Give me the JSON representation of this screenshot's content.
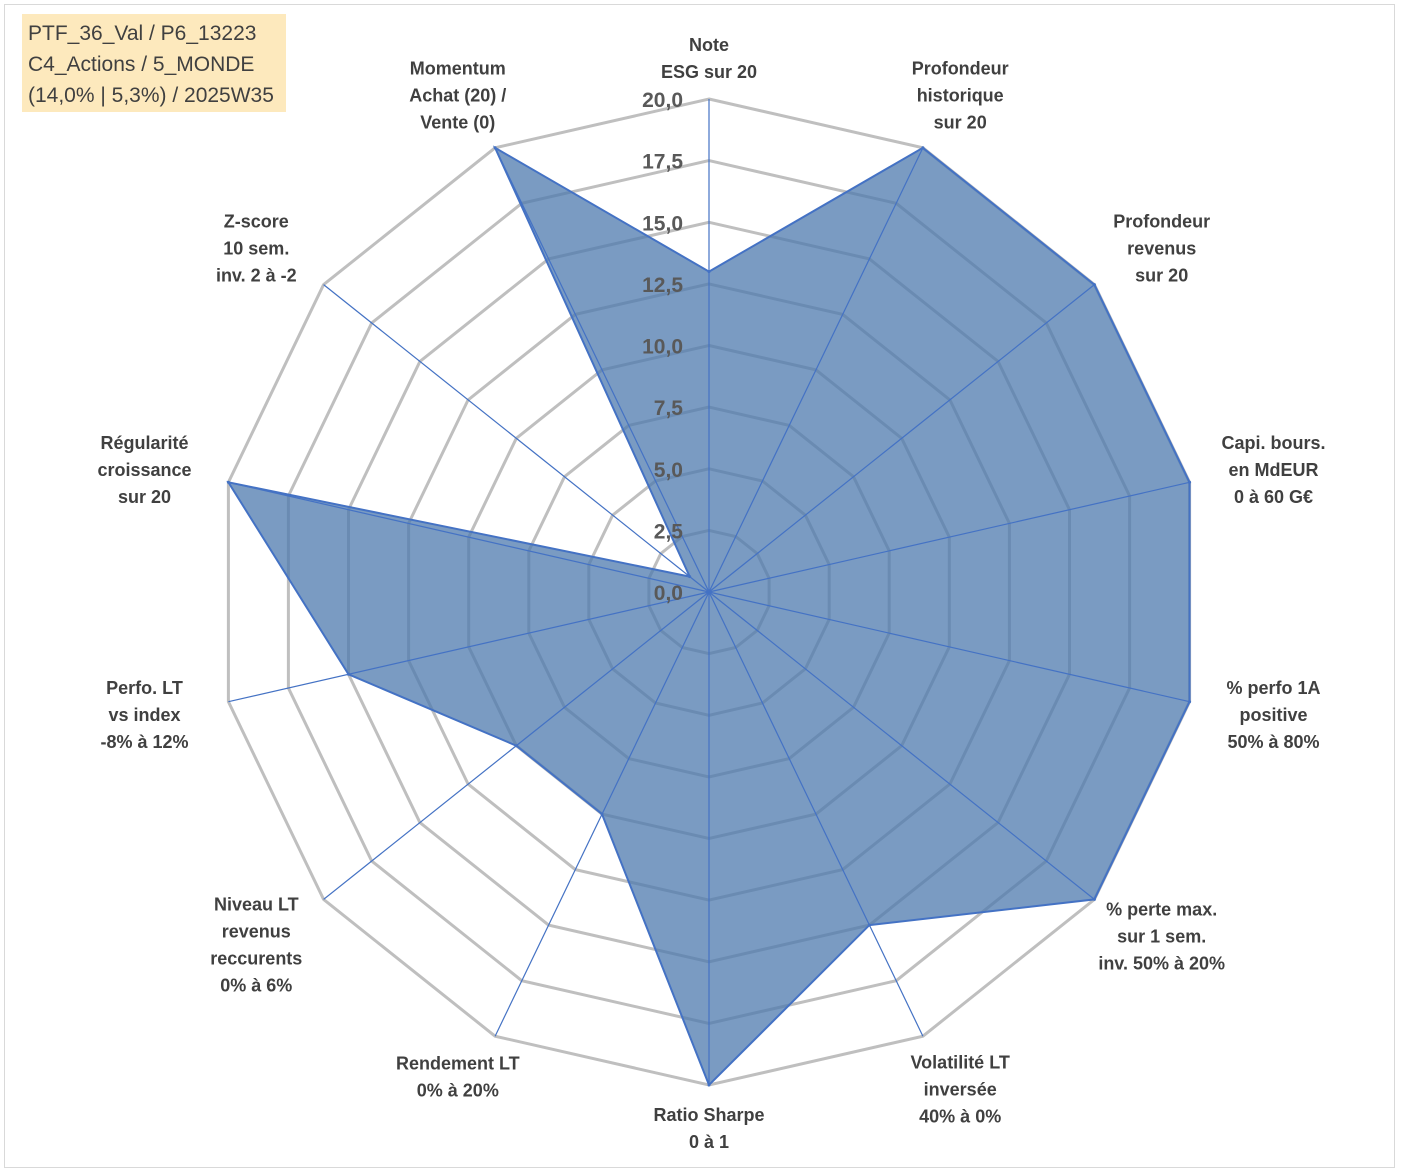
{
  "info_box": {
    "line1": "PTF_36_Val / P6_13223",
    "line2": "C4_Actions / 5_MONDE",
    "line3": "(14,0% | 5,3%) / 2025W35"
  },
  "chart_data": {
    "type": "radar",
    "title": "",
    "rlim": [
      0,
      20
    ],
    "ticks": [
      0,
      2.5,
      5,
      7.5,
      10,
      12.5,
      15,
      17.5,
      20
    ],
    "tick_labels": [
      "0,0",
      "2,5",
      "5,0",
      "7,5",
      "10,0",
      "12,5",
      "15,0",
      "17,5",
      "20,0"
    ],
    "grid": true,
    "colors": {
      "fill": "#4e79ad",
      "line": "#4472c4",
      "grid": "#bfbfbf",
      "axis": "#4472c4",
      "label": "#404040"
    },
    "axes": [
      {
        "label": [
          "Note",
          "ESG sur 20"
        ],
        "value": 13
      },
      {
        "label": [
          "Profondeur",
          "historique",
          "sur 20"
        ],
        "value": 20
      },
      {
        "label": [
          "Profondeur",
          "revenus",
          "sur 20"
        ],
        "value": 20
      },
      {
        "label": [
          "Capi. bours.",
          "en MdEUR",
          "0 à 60 G€"
        ],
        "value": 20
      },
      {
        "label": [
          "% perfo 1A",
          "positive",
          "50% à 80%"
        ],
        "value": 20
      },
      {
        "label": [
          "% perte max.",
          "sur 1 sem.",
          "inv. 50% à 20%"
        ],
        "value": 20
      },
      {
        "label": [
          "Volatilité LT",
          "inversée",
          "40% à 0%"
        ],
        "value": 15
      },
      {
        "label": [
          "Ratio Sharpe",
          "0 à 1"
        ],
        "value": 20
      },
      {
        "label": [
          "Rendement LT",
          "0% à 20%"
        ],
        "value": 10
      },
      {
        "label": [
          "Niveau LT",
          "revenus",
          "reccurents",
          "0% à 6%"
        ],
        "value": 10
      },
      {
        "label": [
          "Perfo. LT",
          "vs index",
          "-8% à 12%"
        ],
        "value": 15
      },
      {
        "label": [
          "Régularité",
          "croissance",
          "sur 20"
        ],
        "value": 20
      },
      {
        "label": [
          "Z-score",
          "10 sem.",
          "inv. 2 à -2"
        ],
        "value": 1
      },
      {
        "label": [
          "Momentum",
          "Achat (20) /",
          "Vente (0)"
        ],
        "value": 20
      }
    ]
  }
}
